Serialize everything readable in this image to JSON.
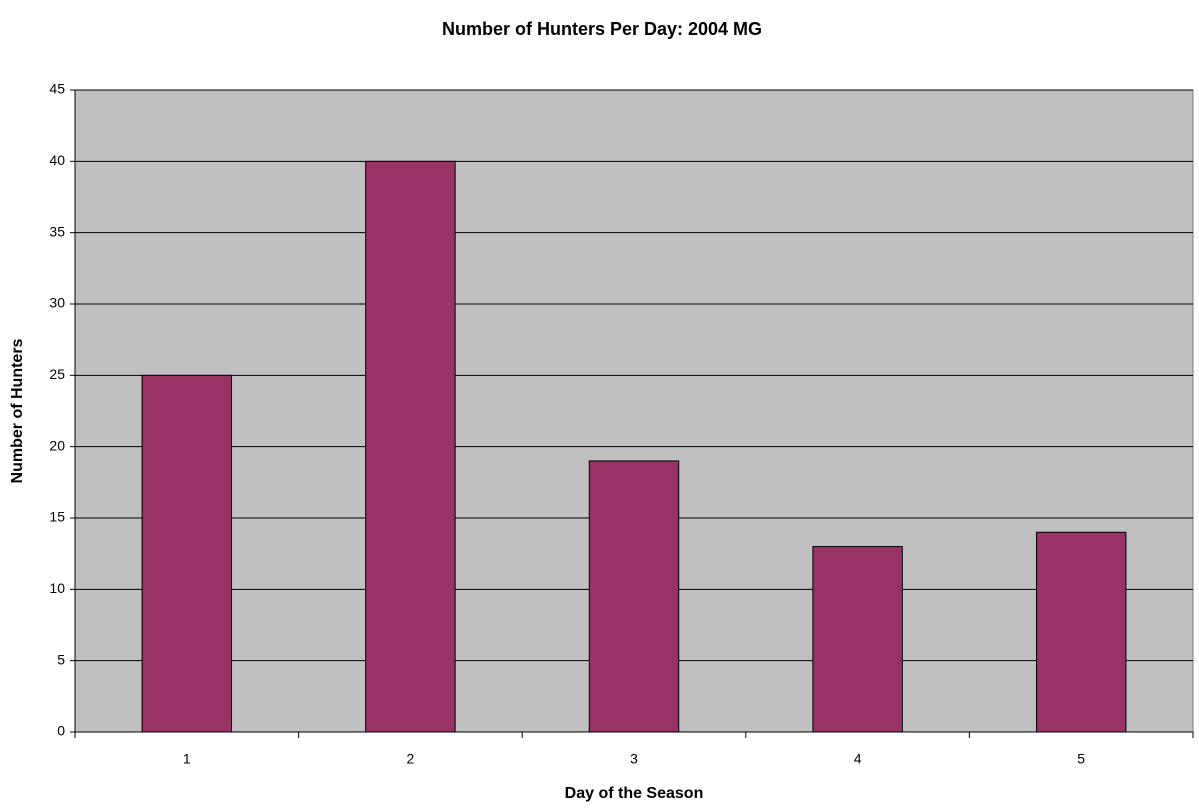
{
  "chart_data": {
    "type": "bar",
    "title": "Number of Hunters Per Day: 2004 MG",
    "x_label": "Day of the Season",
    "y_label": "Number of Hunters",
    "categories": [
      "1",
      "2",
      "3",
      "4",
      "5"
    ],
    "values": [
      25,
      40,
      19,
      13,
      14
    ],
    "color": "#993366",
    "ylim": [
      0,
      45
    ],
    "yticks": [
      0,
      5,
      10,
      15,
      20,
      25,
      30,
      35,
      40,
      45
    ],
    "grid": true
  }
}
